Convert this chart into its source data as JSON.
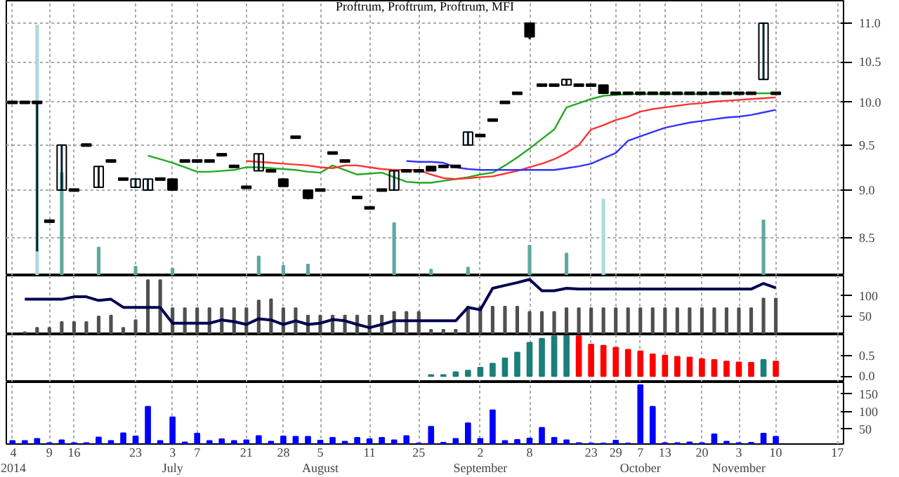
{
  "chart_data": [
    {
      "type": "candlestick",
      "title": "Proftrum, Proftrum, Proftrum, MFI",
      "log": true,
      "grid": true,
      "tick_labels": "y",
      "ylim": [
        8.12,
        11.3
      ],
      "yticks": [
        {
          "value": 8.5,
          "label": "8.5"
        },
        {
          "value": 9,
          "label": "9.0"
        },
        {
          "value": 9.5,
          "label": "9.5"
        },
        {
          "value": 10,
          "label": "10.0"
        },
        {
          "value": 10.5,
          "label": "10.5"
        },
        {
          "value": 11,
          "label": "11.0"
        }
      ],
      "ohlc": [
        [
          10.0,
          10.0,
          10.0,
          10.0
        ],
        [
          10.0,
          10.0,
          10.0,
          10.0
        ],
        [
          10.0,
          10.0,
          8.36,
          10.0
        ],
        [
          8.67,
          8.67,
          8.67,
          8.67
        ],
        [
          9.0,
          9.5,
          9.0,
          9.5
        ],
        [
          9.0,
          9.0,
          9.0,
          9.0
        ],
        [
          9.5,
          9.5,
          9.5,
          9.5
        ],
        [
          9.03,
          9.26,
          9.03,
          9.26
        ],
        [
          9.32,
          9.32,
          9.32,
          9.32
        ],
        [
          9.12,
          9.12,
          9.12,
          9.12
        ],
        [
          9.03,
          9.12,
          9.03,
          9.12
        ],
        [
          9.0,
          9.12,
          9.0,
          9.12
        ],
        [
          9.12,
          9.12,
          9.12,
          9.12
        ],
        [
          9.12,
          9.12,
          9.0,
          9.0
        ],
        [
          9.32,
          9.32,
          9.32,
          9.32
        ],
        [
          9.32,
          9.32,
          9.32,
          9.32
        ],
        [
          9.32,
          9.32,
          9.32,
          9.32
        ],
        [
          9.39,
          9.39,
          9.39,
          9.39
        ],
        [
          9.26,
          9.26,
          9.26,
          9.26
        ],
        [
          9.03,
          9.03,
          9.03,
          9.03
        ],
        [
          9.21,
          9.4,
          9.21,
          9.4
        ],
        [
          9.21,
          9.21,
          9.21,
          9.21
        ],
        [
          9.12,
          9.12,
          9.04,
          9.04
        ],
        [
          9.59,
          9.59,
          9.59,
          9.59
        ],
        [
          9.0,
          9.0,
          8.9,
          8.91
        ],
        [
          9.0,
          9.0,
          9.0,
          9.0
        ],
        [
          9.41,
          9.41,
          9.41,
          9.41
        ],
        [
          9.32,
          9.32,
          9.32,
          9.32
        ],
        [
          8.92,
          8.92,
          8.92,
          8.92
        ],
        [
          8.81,
          8.81,
          8.81,
          8.81
        ],
        [
          9.0,
          9.0,
          9.0,
          9.0
        ],
        [
          9.0,
          9.21,
          9.0,
          9.21
        ],
        [
          9.21,
          9.21,
          9.21,
          9.21
        ],
        [
          9.21,
          9.21,
          9.21,
          9.21
        ],
        [
          9.26,
          9.26,
          9.21,
          9.21
        ],
        [
          9.26,
          9.26,
          9.26,
          9.26
        ],
        [
          9.26,
          9.26,
          9.26,
          9.26
        ],
        [
          9.5,
          9.65,
          9.5,
          9.65
        ],
        [
          9.61,
          9.61,
          9.61,
          9.61
        ],
        [
          9.79,
          9.79,
          9.79,
          9.79
        ],
        [
          10.0,
          10.0,
          10.0,
          10.0
        ],
        [
          10.11,
          10.11,
          10.11,
          10.11
        ],
        [
          11.0,
          11.0,
          10.79,
          10.82
        ],
        [
          10.21,
          10.21,
          10.21,
          10.21
        ],
        [
          10.21,
          10.21,
          10.21,
          10.21
        ],
        [
          10.21,
          10.28,
          10.21,
          10.28
        ],
        [
          10.21,
          10.21,
          10.21,
          10.21
        ],
        [
          10.21,
          10.21,
          10.21,
          10.21
        ],
        [
          10.21,
          10.21,
          10.11,
          10.11
        ],
        [
          10.11,
          10.11,
          10.11,
          10.11
        ],
        [
          10.11,
          10.11,
          10.11,
          10.11
        ],
        [
          10.11,
          10.11,
          10.11,
          10.11
        ],
        [
          10.11,
          10.11,
          10.11,
          10.11
        ],
        [
          10.11,
          10.11,
          10.11,
          10.11
        ],
        [
          10.11,
          10.11,
          10.11,
          10.11
        ],
        [
          10.11,
          10.11,
          10.11,
          10.11
        ],
        [
          10.11,
          10.11,
          10.11,
          10.11
        ],
        [
          10.11,
          10.11,
          10.11,
          10.11
        ],
        [
          10.11,
          10.11,
          10.11,
          10.11
        ],
        [
          10.11,
          10.11,
          10.11,
          10.11
        ],
        [
          10.11,
          10.11,
          10.11,
          10.11
        ],
        [
          10.28,
          11.0,
          10.28,
          11.0
        ],
        [
          10.11,
          10.11,
          10.11,
          10.11
        ],
        null,
        null,
        null,
        null,
        null
      ],
      "series": [
        {
          "type": "bar",
          "color": "#5fa8a0",
          "values": [
            null,
            null,
            null,
            null,
            9.19,
            null,
            null,
            8.4,
            null,
            null,
            8.21,
            null,
            null,
            8.19,
            null,
            null,
            null,
            null,
            null,
            null,
            8.31,
            null,
            8.22,
            null,
            8.23,
            null,
            null,
            null,
            null,
            null,
            null,
            8.65,
            null,
            null,
            8.18,
            null,
            null,
            8.2,
            null,
            null,
            null,
            null,
            8.42,
            null,
            null,
            8.34,
            null,
            null,
            null,
            null,
            null,
            null,
            null,
            null,
            null,
            null,
            null,
            null,
            null,
            null,
            null,
            8.68,
            null,
            null,
            null,
            null,
            null,
            null
          ]
        },
        {
          "type": "bar",
          "color": "#b0dada",
          "values": [
            null,
            null,
            10.97,
            null,
            null,
            null,
            null,
            null,
            null,
            null,
            null,
            null,
            null,
            null,
            null,
            null,
            null,
            null,
            null,
            null,
            null,
            null,
            null,
            null,
            null,
            null,
            null,
            null,
            null,
            null,
            null,
            null,
            null,
            null,
            null,
            null,
            null,
            null,
            null,
            null,
            null,
            null,
            null,
            null,
            null,
            null,
            null,
            null,
            8.9,
            null,
            null,
            null,
            null,
            null,
            null,
            null,
            null,
            null,
            null,
            null,
            null,
            null,
            null,
            null,
            null,
            null,
            null,
            null
          ]
        },
        {
          "type": "line",
          "color": "#22aa22",
          "values": [
            null,
            null,
            null,
            null,
            null,
            null,
            null,
            null,
            null,
            null,
            null,
            9.38,
            9.34,
            9.3,
            9.25,
            9.2,
            9.2,
            9.21,
            9.22,
            9.25,
            9.25,
            9.24,
            9.23,
            9.22,
            9.2,
            9.19,
            9.27,
            9.22,
            9.17,
            9.18,
            9.19,
            9.14,
            9.09,
            9.08,
            9.08,
            9.1,
            9.12,
            9.14,
            9.17,
            9.19,
            9.27,
            9.36,
            9.46,
            9.57,
            9.68,
            9.94,
            9.99,
            10.04,
            10.08,
            10.09,
            10.1,
            10.1,
            10.1,
            10.1,
            10.1,
            10.1,
            10.1,
            10.1,
            10.11,
            10.11,
            10.11,
            10.11,
            10.11,
            null,
            null,
            null,
            null,
            null
          ]
        },
        {
          "type": "line",
          "color": "#ff3333",
          "values": [
            null,
            null,
            null,
            null,
            null,
            null,
            null,
            null,
            null,
            null,
            null,
            null,
            null,
            null,
            null,
            null,
            null,
            null,
            null,
            9.32,
            9.31,
            9.3,
            9.29,
            9.28,
            9.27,
            9.25,
            9.24,
            9.27,
            9.27,
            9.25,
            9.23,
            9.22,
            9.22,
            9.22,
            9.17,
            9.13,
            9.12,
            9.13,
            9.14,
            9.15,
            9.18,
            9.21,
            9.25,
            9.29,
            9.34,
            9.41,
            9.5,
            9.68,
            9.73,
            9.79,
            9.83,
            9.89,
            9.92,
            9.94,
            9.96,
            9.98,
            9.99,
            10.01,
            10.02,
            10.03,
            10.04,
            10.05,
            10.06,
            null,
            null,
            null,
            null,
            null
          ]
        },
        {
          "type": "line",
          "color": "#3333ff",
          "values": [
            null,
            null,
            null,
            null,
            null,
            null,
            null,
            null,
            null,
            null,
            null,
            null,
            null,
            null,
            null,
            null,
            null,
            null,
            null,
            null,
            null,
            null,
            null,
            null,
            null,
            null,
            null,
            null,
            null,
            null,
            null,
            null,
            9.32,
            9.31,
            9.31,
            9.3,
            9.25,
            9.23,
            9.22,
            9.22,
            9.22,
            9.22,
            9.22,
            9.22,
            9.22,
            9.24,
            9.26,
            9.29,
            9.35,
            9.41,
            9.55,
            9.6,
            9.65,
            9.7,
            9.73,
            9.76,
            9.78,
            9.8,
            9.82,
            9.83,
            9.85,
            9.88,
            9.91,
            null,
            null,
            null,
            null,
            null
          ]
        }
      ]
    },
    {
      "type": "line",
      "grid": "x",
      "tick_labels": "y",
      "ylim": [
        5,
        150
      ],
      "yticks": [
        50,
        100
      ],
      "series": [
        {
          "type": "bar",
          "color": "#505050",
          "values": [
            null,
            11,
            22,
            22,
            36,
            36,
            36,
            50,
            52,
            22,
            41,
            139,
            139,
            70,
            70,
            70,
            70,
            70,
            70,
            70,
            89,
            92,
            70,
            70,
            52,
            52,
            52,
            52,
            52,
            52,
            52,
            61,
            61,
            61,
            17,
            17,
            17,
            74,
            74,
            74,
            74,
            74,
            61,
            61,
            61,
            70,
            70,
            70,
            70,
            70,
            70,
            70,
            70,
            70,
            70,
            70,
            70,
            70,
            70,
            70,
            70,
            94,
            94,
            null,
            null,
            null,
            null,
            null
          ]
        },
        {
          "type": "line",
          "color": "#000050",
          "values": [
            null,
            92,
            92,
            92,
            92,
            98,
            98,
            89,
            92,
            72,
            72,
            72,
            72,
            33,
            33,
            33,
            33,
            41,
            37,
            30,
            44,
            41,
            30,
            39,
            30,
            33,
            42,
            39,
            30,
            22,
            30,
            39,
            39,
            39,
            39,
            39,
            39,
            72,
            66,
            119,
            126,
            133,
            141,
            113,
            113,
            119,
            117,
            117,
            117,
            117,
            117,
            117,
            117,
            117,
            117,
            117,
            117,
            117,
            117,
            117,
            117,
            131,
            120,
            null,
            null,
            null,
            null,
            null
          ]
        }
      ]
    },
    {
      "type": "bar",
      "grid": "x",
      "tick_labels": "y",
      "ylim": [
        -0.15,
        1.02
      ],
      "yticks": [
        {
          "value": 0,
          "label": "0.0"
        },
        {
          "value": 0.5,
          "label": "0.5"
        }
      ],
      "values": [
        null,
        null,
        null,
        null,
        null,
        null,
        null,
        null,
        null,
        null,
        null,
        null,
        null,
        null,
        null,
        null,
        null,
        null,
        null,
        null,
        null,
        null,
        null,
        null,
        null,
        null,
        null,
        null,
        null,
        null,
        null,
        null,
        null,
        null,
        0.03,
        0.03,
        0.1,
        0.14,
        0.21,
        0.31,
        0.44,
        0.58,
        0.82,
        0.92,
        0.98,
        0.99,
        0.98,
        0.78,
        0.75,
        0.7,
        0.65,
        0.61,
        0.54,
        0.51,
        0.48,
        0.46,
        0.42,
        0.4,
        0.36,
        0.34,
        0.33,
        0.4,
        0.36,
        null,
        null,
        null,
        null,
        null
      ],
      "colors": [
        "#1a7f7a",
        "#1a7f7a",
        "#1a7f7a",
        "#1a7f7a",
        "#1a7f7a",
        "#1a7f7a",
        "#1a7f7a",
        "#1a7f7a",
        "#1a7f7a",
        "#1a7f7a",
        "#1a7f7a",
        "#1a7f7a",
        "#1a7f7a",
        "#1a7f7a",
        "#1a7f7a",
        "#1a7f7a",
        "#1a7f7a",
        "#1a7f7a",
        "#1a7f7a",
        "#1a7f7a",
        "#1a7f7a",
        "#1a7f7a",
        "#1a7f7a",
        "#1a7f7a",
        "#1a7f7a",
        "#1a7f7a",
        "#1a7f7a",
        "#1a7f7a",
        "#1a7f7a",
        "#1a7f7a",
        "#1a7f7a",
        "#1a7f7a",
        "#1a7f7a",
        "#1a7f7a",
        "#1a7f7a",
        "#1a7f7a",
        "#1a7f7a",
        "#1a7f7a",
        "#1a7f7a",
        "#1a7f7a",
        "#1a7f7a",
        "#1a7f7a",
        "#1a7f7a",
        "#1a7f7a",
        "#1a7f7a",
        "#1a7f7a",
        "#ff0000",
        "#ff0000",
        "#ff0000",
        "#ff0000",
        "#ff0000",
        "#ff0000",
        "#ff0000",
        "#ff0000",
        "#ff0000",
        "#ff0000",
        "#ff0000",
        "#ff0000",
        "#ff0000",
        "#ff0000",
        "#ff0000",
        "#1a7f7a",
        "#ff0000",
        "#ff0000",
        "#ff0000",
        "#ff0000",
        "#ff0000",
        "#ff0000"
      ]
    },
    {
      "type": "bar",
      "grid": "x",
      "color": "#0000ff",
      "ylim": [
        8,
        183
      ],
      "yticks": [
        50,
        100,
        150
      ],
      "categories": [
        "4\n2014",
        null,
        null,
        "9",
        null,
        "16",
        null,
        null,
        null,
        null,
        "23",
        null,
        null,
        "3\nJuly",
        null,
        "7",
        null,
        null,
        null,
        "21",
        null,
        null,
        "28",
        null,
        null,
        "5\nAugust",
        null,
        null,
        null,
        "11",
        null,
        null,
        null,
        "25",
        null,
        null,
        null,
        null,
        "2\nSeptember",
        null,
        null,
        null,
        "8",
        null,
        null,
        null,
        null,
        "23",
        null,
        "29",
        null,
        "7\nOctober",
        null,
        "13",
        null,
        null,
        "20",
        null,
        null,
        "3\nNovember",
        null,
        null,
        "10",
        null,
        null,
        null,
        null,
        "17"
      ],
      "values": [
        17,
        17,
        23,
        11,
        19,
        11,
        11,
        27,
        17,
        39,
        30,
        114,
        17,
        84,
        13,
        38,
        17,
        22,
        17,
        19,
        31,
        15,
        30,
        29,
        29,
        18,
        26,
        15,
        26,
        22,
        26,
        19,
        31,
        10,
        57,
        12,
        23,
        67,
        23,
        104,
        17,
        20,
        24,
        54,
        26,
        19,
        11,
        10,
        10,
        18,
        10,
        175,
        114,
        11,
        11,
        13,
        11,
        36,
        15,
        11,
        12,
        38,
        29,
        null,
        null,
        null,
        null,
        null
      ]
    }
  ]
}
